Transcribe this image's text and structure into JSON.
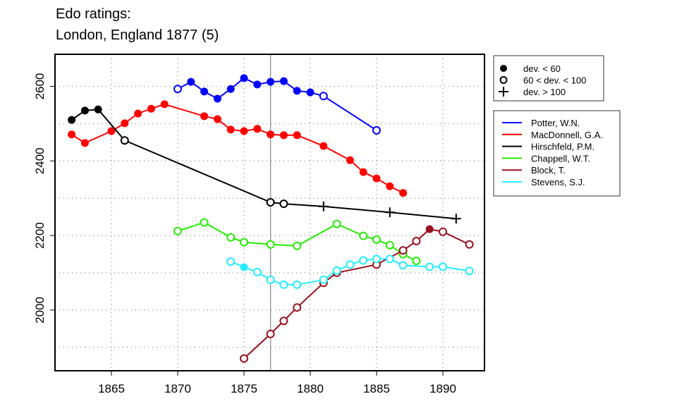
{
  "chart_data": {
    "type": "line",
    "title": [
      "Edo ratings:",
      "London, England 1877 (5)"
    ],
    "xlabel": "",
    "ylabel": "",
    "xlim": [
      1861.5,
      1893.5
    ],
    "ylim": [
      1855,
      2700
    ],
    "xticks": [
      1865,
      1870,
      1875,
      1880,
      1885,
      1890
    ],
    "yticks": [
      2000,
      2200,
      2400,
      2600
    ],
    "grid": true,
    "marker_year": 1877,
    "marker_legend": [
      {
        "symbol": "filled",
        "label": "dev. < 60"
      },
      {
        "symbol": "open",
        "label": "60 < dev. < 100"
      },
      {
        "symbol": "plus",
        "label": "dev. > 100"
      }
    ],
    "legend_placement": "right",
    "series": [
      {
        "name": "Potter, W.N.",
        "color": "#0000ff",
        "points": [
          [
            1870,
            2593,
            "o"
          ],
          [
            1871,
            2612,
            "f"
          ],
          [
            1872,
            2586,
            "f"
          ],
          [
            1873,
            2567,
            "f"
          ],
          [
            1874,
            2593,
            "f"
          ],
          [
            1875,
            2622,
            "f"
          ],
          [
            1876,
            2605,
            "f"
          ],
          [
            1877,
            2612,
            "f"
          ],
          [
            1878,
            2614,
            "f"
          ],
          [
            1879,
            2588,
            "f"
          ],
          [
            1880,
            2584,
            "f"
          ],
          [
            1881,
            2574,
            "o"
          ],
          [
            1885,
            2482,
            "o"
          ]
        ]
      },
      {
        "name": "MacDonnell, G.A.",
        "color": "#ff0000",
        "points": [
          [
            1862,
            2471,
            "f"
          ],
          [
            1863,
            2448,
            "f"
          ],
          [
            1865,
            2480,
            "f"
          ],
          [
            1866,
            2501,
            "f"
          ],
          [
            1867,
            2527,
            "f"
          ],
          [
            1868,
            2540,
            "f"
          ],
          [
            1869,
            2552,
            "f"
          ],
          [
            1872,
            2520,
            "f"
          ],
          [
            1873,
            2512,
            "f"
          ],
          [
            1874,
            2484,
            "f"
          ],
          [
            1875,
            2480,
            "f"
          ],
          [
            1876,
            2486,
            "f"
          ],
          [
            1877,
            2471,
            "f"
          ],
          [
            1878,
            2469,
            "f"
          ],
          [
            1879,
            2469,
            "f"
          ],
          [
            1881,
            2440,
            "f"
          ],
          [
            1883,
            2402,
            "f"
          ],
          [
            1884,
            2370,
            "f"
          ],
          [
            1885,
            2353,
            "f"
          ],
          [
            1886,
            2332,
            "f"
          ],
          [
            1887,
            2314,
            "f"
          ]
        ]
      },
      {
        "name": "Hirschfeld, P.M.",
        "color": "#000000",
        "points": [
          [
            1862,
            2510,
            "f"
          ],
          [
            1863,
            2535,
            "f"
          ],
          [
            1864,
            2538,
            "f"
          ],
          [
            1866,
            2455,
            "o"
          ],
          [
            1877,
            2289,
            "o"
          ],
          [
            1878,
            2285,
            "o"
          ],
          [
            1881,
            2278,
            "p"
          ],
          [
            1886,
            2262,
            "p"
          ],
          [
            1891,
            2245,
            "p"
          ]
        ]
      },
      {
        "name": "Chappell, W.T.",
        "color": "#22ee00",
        "points": [
          [
            1870,
            2212,
            "o"
          ],
          [
            1872,
            2235,
            "o"
          ],
          [
            1874,
            2195,
            "o"
          ],
          [
            1875,
            2182,
            "o"
          ],
          [
            1877,
            2176,
            "o"
          ],
          [
            1879,
            2172,
            "o"
          ],
          [
            1882,
            2231,
            "o"
          ],
          [
            1884,
            2199,
            "o"
          ],
          [
            1885,
            2189,
            "o"
          ],
          [
            1886,
            2174,
            "o"
          ],
          [
            1887,
            2150,
            "o"
          ],
          [
            1888,
            2132,
            "o"
          ]
        ]
      },
      {
        "name": "Block, T.",
        "color": "#9b1020",
        "points": [
          [
            1875,
            1870,
            "o"
          ],
          [
            1877,
            1936,
            "o"
          ],
          [
            1878,
            1971,
            "o"
          ],
          [
            1879,
            2007,
            "o"
          ],
          [
            1881,
            2073,
            "o"
          ],
          [
            1882,
            2100,
            "o"
          ],
          [
            1885,
            2122,
            "o"
          ],
          [
            1887,
            2160,
            "o"
          ],
          [
            1888,
            2185,
            "o"
          ],
          [
            1889,
            2217,
            "f"
          ],
          [
            1890,
            2210,
            "o"
          ],
          [
            1892,
            2176,
            "o"
          ]
        ]
      },
      {
        "name": "Stevens, S.J.",
        "color": "#22eeff",
        "points": [
          [
            1874,
            2130,
            "o"
          ],
          [
            1875,
            2115,
            "f"
          ],
          [
            1876,
            2102,
            "o"
          ],
          [
            1877,
            2081,
            "o"
          ],
          [
            1878,
            2068,
            "o"
          ],
          [
            1879,
            2068,
            "o"
          ],
          [
            1881,
            2081,
            "o"
          ],
          [
            1882,
            2106,
            "o"
          ],
          [
            1883,
            2122,
            "o"
          ],
          [
            1884,
            2133,
            "o"
          ],
          [
            1885,
            2137,
            "o"
          ],
          [
            1886,
            2137,
            "o"
          ],
          [
            1887,
            2120,
            "o"
          ],
          [
            1889,
            2116,
            "o"
          ],
          [
            1890,
            2116,
            "o"
          ],
          [
            1892,
            2105,
            "o"
          ]
        ]
      }
    ]
  }
}
